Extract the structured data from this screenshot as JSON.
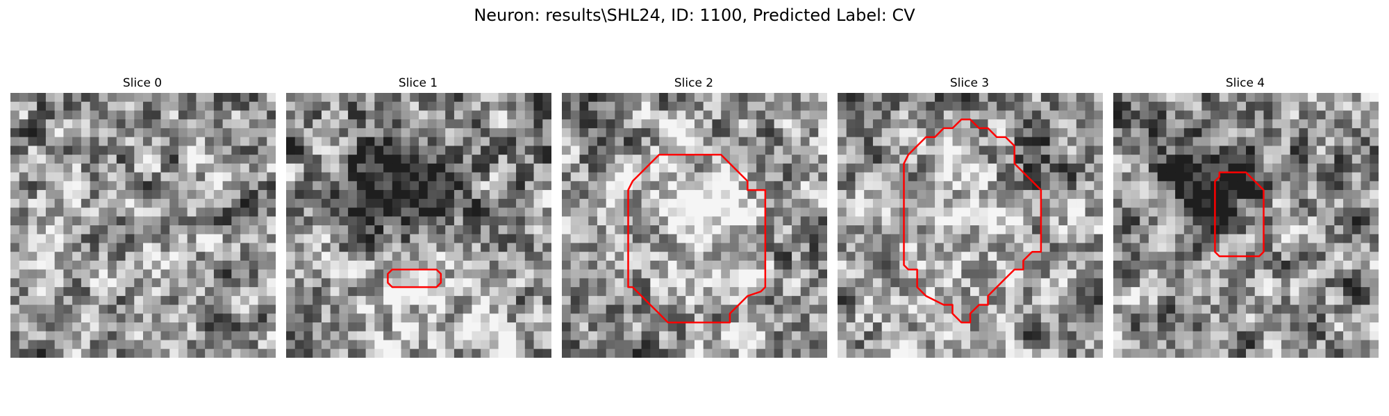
{
  "figure": {
    "title": "Neuron: results\\SHL24, ID: 1100, Predicted Label: CV"
  },
  "grid_size": 30,
  "colors": {
    "contour": "#ff0000"
  },
  "slices": [
    {
      "title": "Slice 0",
      "seed": 11,
      "blobs": [],
      "contour": []
    },
    {
      "title": "Slice 1",
      "seed": 23,
      "blobs": [
        [
          13,
          12,
          4,
          -0.35
        ],
        [
          14,
          22,
          5,
          0.2
        ],
        [
          10,
          8,
          4,
          -0.15
        ]
      ],
      "contour": [
        [
          12,
          20
        ],
        [
          17,
          20
        ],
        [
          17.5,
          20.5
        ],
        [
          17.5,
          21.5
        ],
        [
          17,
          22
        ],
        [
          12,
          22
        ],
        [
          11.5,
          21.5
        ],
        [
          11.5,
          20.5
        ]
      ]
    },
    {
      "title": "Slice 2",
      "seed": 37,
      "blobs": [
        [
          15,
          13,
          6,
          0.35
        ],
        [
          15,
          14,
          9,
          -0.12
        ]
      ],
      "contour": [
        [
          11,
          7
        ],
        [
          18,
          7
        ],
        [
          19,
          8
        ],
        [
          20,
          9
        ],
        [
          21,
          10
        ],
        [
          21,
          11
        ],
        [
          23,
          11
        ],
        [
          23,
          22
        ],
        [
          22.5,
          22.5
        ],
        [
          21,
          23
        ],
        [
          20,
          24
        ],
        [
          19,
          25
        ],
        [
          19,
          26
        ],
        [
          12,
          26
        ],
        [
          11,
          25
        ],
        [
          10,
          24
        ],
        [
          9,
          23
        ],
        [
          8,
          22
        ],
        [
          7.5,
          22
        ],
        [
          7.5,
          11
        ],
        [
          8,
          10
        ],
        [
          9,
          9
        ],
        [
          10,
          8
        ]
      ]
    },
    {
      "title": "Slice 3",
      "seed": 53,
      "blobs": [
        [
          14,
          14,
          7,
          0.15
        ],
        [
          22,
          7,
          3,
          -0.25
        ]
      ],
      "contour": [
        [
          12,
          4
        ],
        [
          13,
          4
        ],
        [
          14,
          3
        ],
        [
          15,
          3
        ],
        [
          16,
          4
        ],
        [
          17,
          4
        ],
        [
          18,
          5
        ],
        [
          19,
          5
        ],
        [
          20,
          6
        ],
        [
          20,
          8
        ],
        [
          21,
          9
        ],
        [
          22,
          10
        ],
        [
          23,
          11
        ],
        [
          23,
          18
        ],
        [
          22,
          18
        ],
        [
          21,
          19
        ],
        [
          21,
          20
        ],
        [
          20,
          20
        ],
        [
          19,
          21
        ],
        [
          18,
          22
        ],
        [
          17,
          23
        ],
        [
          17,
          24
        ],
        [
          16,
          24
        ],
        [
          15,
          25
        ],
        [
          15,
          26
        ],
        [
          14,
          26
        ],
        [
          13,
          25
        ],
        [
          13,
          24
        ],
        [
          12,
          24
        ],
        [
          10,
          23
        ],
        [
          9,
          22
        ],
        [
          9,
          20
        ],
        [
          8,
          20
        ],
        [
          7.5,
          19.5
        ],
        [
          7.5,
          8
        ],
        [
          8,
          7
        ],
        [
          9,
          6
        ],
        [
          10,
          5
        ],
        [
          11,
          5
        ]
      ]
    },
    {
      "title": "Slice 4",
      "seed": 71,
      "blobs": [
        [
          12,
          9,
          4,
          -0.3
        ],
        [
          12,
          15,
          3,
          0.05
        ],
        [
          8,
          12,
          4,
          -0.15
        ]
      ],
      "contour": [
        [
          12,
          9
        ],
        [
          15,
          9
        ],
        [
          16,
          10
        ],
        [
          17,
          11
        ],
        [
          17,
          18
        ],
        [
          16.5,
          18.5
        ],
        [
          12,
          18.5
        ],
        [
          11.5,
          18
        ],
        [
          11.5,
          10
        ],
        [
          12,
          9.5
        ]
      ]
    }
  ]
}
